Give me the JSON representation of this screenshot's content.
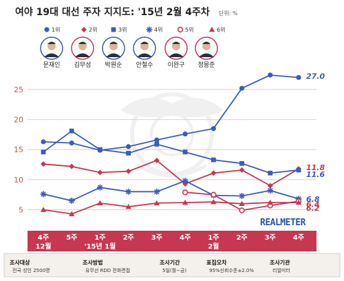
{
  "header": {
    "title": "여야 19대 대선 주자 지지도: '15년 2월 4주차",
    "unit": "단위: %"
  },
  "legend": [
    {
      "rank": "1위",
      "name": "문재인",
      "color": "#3a5bbf",
      "marker": "circle"
    },
    {
      "rank": "2위",
      "name": "김무성",
      "color": "#c73750",
      "marker": "diamond"
    },
    {
      "rank": "3위",
      "name": "박원순",
      "color": "#3a5bbf",
      "marker": "square"
    },
    {
      "rank": "4위",
      "name": "안철수",
      "color": "#3a5bbf",
      "marker": "star"
    },
    {
      "rank": "5위",
      "name": "이완구",
      "color": "#c73750",
      "marker": "circle-open"
    },
    {
      "rank": "6위",
      "name": "정몽준",
      "color": "#c73750",
      "marker": "triangle"
    }
  ],
  "brand": "REALMETER",
  "footer": {
    "items": [
      {
        "label": "조사대상",
        "text": "전국 성인 2500명"
      },
      {
        "label": "조사방법",
        "text": "유무선 RDD 전화면접"
      },
      {
        "label": "조사기간",
        "text": "5일(월~금)"
      },
      {
        "label": "표집오차",
        "text": "95%신뢰수준±2.0%"
      },
      {
        "label": "조사기관",
        "text": "리얼미터"
      }
    ]
  },
  "chart_data": {
    "type": "line",
    "categories": [
      {
        "line1": "4주",
        "line2": "12월"
      },
      {
        "line1": "5주",
        "line2": ""
      },
      {
        "line1": "1주",
        "line2": "'15년 1월"
      },
      {
        "line1": "2주",
        "line2": ""
      },
      {
        "line1": "3주",
        "line2": ""
      },
      {
        "line1": "4주",
        "line2": ""
      },
      {
        "line1": "1주",
        "line2": "2월"
      },
      {
        "line1": "2주",
        "line2": ""
      },
      {
        "line1": "3주",
        "line2": ""
      },
      {
        "line1": "4주",
        "line2": ""
      }
    ],
    "ylim": [
      3,
      29
    ],
    "yticks": [
      5,
      10,
      15,
      20,
      25
    ],
    "series": [
      {
        "name": "문재인",
        "color": "#3a5bbf",
        "marker": "circle",
        "values": [
          16.3,
          16.1,
          14.9,
          15.5,
          16.6,
          17.6,
          18.5,
          25.2,
          27.4,
          27.0
        ],
        "end_label": "27.0"
      },
      {
        "name": "김무성",
        "color": "#c73750",
        "marker": "diamond",
        "values": [
          12.6,
          12.2,
          11.2,
          11.4,
          13.2,
          9.3,
          11.1,
          11.6,
          9.0,
          11.8
        ],
        "end_label": "11.8"
      },
      {
        "name": "박원순",
        "color": "#3a5bbf",
        "marker": "square",
        "values": [
          14.6,
          18.1,
          15.0,
          14.4,
          15.9,
          14.6,
          13.3,
          12.7,
          11.1,
          11.6
        ],
        "end_label": "11.6"
      },
      {
        "name": "안철수",
        "color": "#3a5bbf",
        "marker": "star",
        "values": [
          7.6,
          6.5,
          8.7,
          8.0,
          8.0,
          9.8,
          7.4,
          7.3,
          8.2,
          6.8
        ],
        "end_label": "6.8"
      },
      {
        "name": "이완구",
        "color": "#c73750",
        "marker": "circle-open",
        "values": [
          null,
          null,
          null,
          null,
          null,
          7.9,
          7.5,
          4.9,
          5.7,
          6.4
        ],
        "end_label": "6.4"
      },
      {
        "name": "정몽준",
        "color": "#c73750",
        "marker": "triangle",
        "values": [
          5.0,
          4.3,
          6.1,
          5.5,
          6.1,
          6.2,
          6.3,
          6.0,
          6.2,
          6.2
        ],
        "end_label": "6.2"
      }
    ]
  }
}
